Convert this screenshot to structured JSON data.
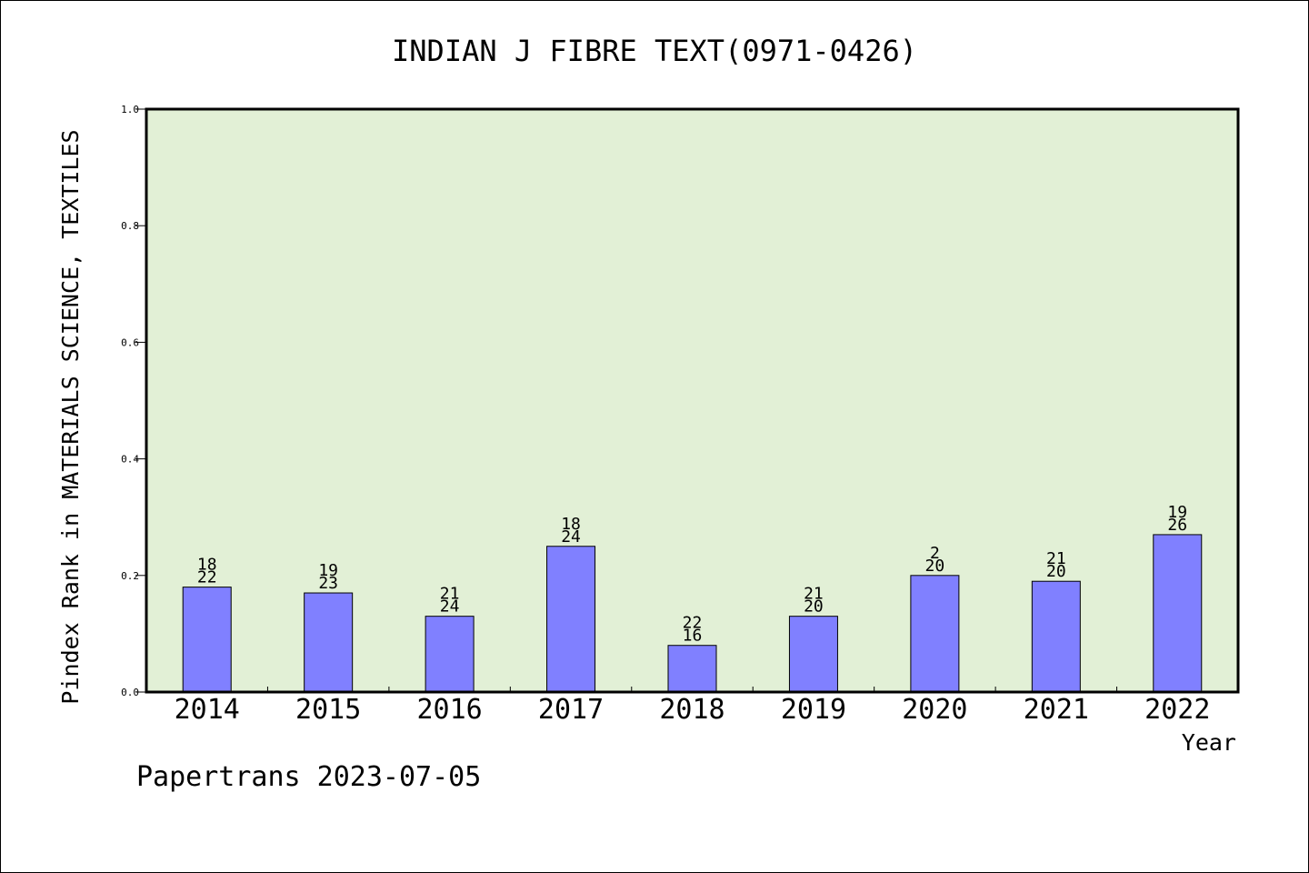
{
  "chart_data": {
    "type": "bar",
    "title": "INDIAN J FIBRE TEXT(0971-0426)",
    "xlabel": "Year",
    "ylabel": "Pindex Rank in MATERIALS SCIENCE, TEXTILES",
    "categories": [
      "2014",
      "2015",
      "2016",
      "2017",
      "2018",
      "2019",
      "2020",
      "2021",
      "2022"
    ],
    "values": [
      0.18,
      0.17,
      0.13,
      0.25,
      0.08,
      0.13,
      0.2,
      0.19,
      0.27
    ],
    "bar_labels": [
      {
        "top": "18",
        "bottom": "22"
      },
      {
        "top": "19",
        "bottom": "23"
      },
      {
        "top": "21",
        "bottom": "24"
      },
      {
        "top": "18",
        "bottom": "24"
      },
      {
        "top": "22",
        "bottom": "16"
      },
      {
        "top": "21",
        "bottom": "20"
      },
      {
        "top": "2",
        "bottom": "20"
      },
      {
        "top": "21",
        "bottom": "20"
      },
      {
        "top": "19",
        "bottom": "26"
      }
    ],
    "ylim": [
      0,
      1.0
    ],
    "yticks": [
      "0.0",
      "0.2",
      "0.4",
      "0.6",
      "0.8",
      "1.0"
    ],
    "grid": false,
    "legend": "none",
    "colors": {
      "plot_background": "#e2f0d6",
      "bar_fill": "#8080ff",
      "bar_edge": "#000000",
      "axis": "#000000"
    }
  },
  "footer": {
    "source": "Papertrans 2023-07-05"
  }
}
